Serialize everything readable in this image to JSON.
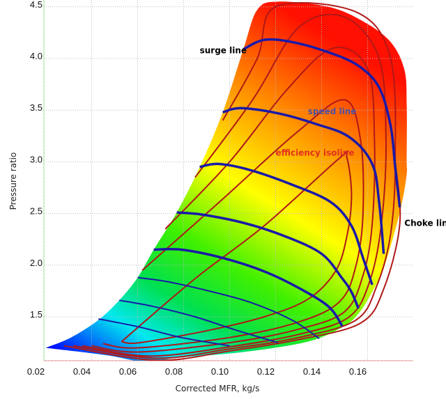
{
  "chart_data": {
    "type": "line",
    "title": "",
    "xlabel": "Corrected MFR, kg/s",
    "ylabel": "Pressure ratio",
    "xlim": [
      0.0235,
      0.18
    ],
    "ylim": [
      1.22,
      4.6
    ],
    "x_ticks": [
      0.02,
      0.04,
      0.06,
      0.08,
      0.1,
      0.12,
      0.14,
      0.16
    ],
    "x_tick_labels": [
      "0.02",
      "0.04",
      "0.06",
      "0.08",
      "0.10",
      "0.12",
      "0.14",
      "0.16"
    ],
    "y_ticks": [
      1.5,
      2.0,
      2.5,
      3.0,
      3.5,
      4.0,
      4.5
    ],
    "y_tick_labels": [
      "1.5",
      "2.0",
      "2.5",
      "3.0",
      "3.5",
      "4.0",
      "4.5"
    ],
    "grid": true,
    "colors": {
      "speed": "#1a1aa8",
      "efficiency": "#b01818",
      "speed_label": "#5050a0",
      "efficiency_label": "#e03020"
    },
    "annotations": [
      {
        "id": "surge",
        "text": "surge line",
        "at": [
          0.087,
          4.05
        ],
        "color": "#000000"
      },
      {
        "id": "speed",
        "text": "speed line",
        "at": [
          0.134,
          3.46
        ],
        "color": "#5050a0"
      },
      {
        "id": "efficiency",
        "text": "efficiency isoline",
        "at": [
          0.12,
          3.06
        ],
        "color": "#e03020"
      },
      {
        "id": "choke",
        "text": "Choke line",
        "at": [
          0.176,
          2.38
        ],
        "color": "#000000"
      }
    ],
    "map_boundary": [
      [
        0.02,
        1.2
      ],
      [
        0.031,
        1.3
      ],
      [
        0.043,
        1.47
      ],
      [
        0.052,
        1.66
      ],
      [
        0.06,
        1.88
      ],
      [
        0.067,
        2.15
      ],
      [
        0.077,
        2.51
      ],
      [
        0.087,
        2.95
      ],
      [
        0.097,
        3.48
      ],
      [
        0.106,
        4.09
      ],
      [
        0.112,
        4.47
      ],
      [
        0.121,
        4.55
      ],
      [
        0.143,
        4.5
      ],
      [
        0.158,
        4.36
      ],
      [
        0.17,
        4.16
      ],
      [
        0.176,
        3.89
      ],
      [
        0.177,
        3.56
      ],
      [
        0.177,
        3.02
      ],
      [
        0.177,
        2.88
      ],
      [
        0.175,
        2.61
      ],
      [
        0.172,
        2.34
      ],
      [
        0.167,
        1.97
      ],
      [
        0.162,
        1.74
      ],
      [
        0.156,
        1.53
      ],
      [
        0.149,
        1.4
      ],
      [
        0.134,
        1.26
      ],
      [
        0.106,
        1.16
      ],
      [
        0.076,
        1.1
      ],
      [
        0.064,
        1.06
      ],
      [
        0.046,
        1.13
      ],
      [
        0.02,
        1.2
      ]
    ],
    "speed_lines": [
      {
        "name": "speed 1",
        "points": [
          [
            0.106,
            4.09
          ],
          [
            0.115,
            4.18
          ],
          [
            0.127,
            4.16
          ],
          [
            0.143,
            4.06
          ],
          [
            0.156,
            3.93
          ],
          [
            0.165,
            3.72
          ],
          [
            0.17,
            3.35
          ],
          [
            0.172,
            2.95
          ],
          [
            0.174,
            2.56
          ]
        ]
      },
      {
        "name": "speed 2",
        "points": [
          [
            0.097,
            3.48
          ],
          [
            0.105,
            3.52
          ],
          [
            0.121,
            3.47
          ],
          [
            0.137,
            3.37
          ],
          [
            0.152,
            3.24
          ],
          [
            0.162,
            2.98
          ],
          [
            0.165,
            2.61
          ],
          [
            0.167,
            2.11
          ]
        ]
      },
      {
        "name": "speed 3",
        "points": [
          [
            0.087,
            2.95
          ],
          [
            0.095,
            2.98
          ],
          [
            0.109,
            2.92
          ],
          [
            0.127,
            2.78
          ],
          [
            0.144,
            2.61
          ],
          [
            0.153,
            2.38
          ],
          [
            0.158,
            2.07
          ],
          [
            0.162,
            1.81
          ]
        ]
      },
      {
        "name": "speed 4",
        "points": [
          [
            0.077,
            2.51
          ],
          [
            0.088,
            2.49
          ],
          [
            0.106,
            2.41
          ],
          [
            0.124,
            2.28
          ],
          [
            0.14,
            2.11
          ],
          [
            0.149,
            1.87
          ],
          [
            0.153,
            1.74
          ],
          [
            0.156,
            1.58
          ]
        ]
      },
      {
        "name": "speed 5",
        "points": [
          [
            0.067,
            2.15
          ],
          [
            0.079,
            2.15
          ],
          [
            0.097,
            2.07
          ],
          [
            0.115,
            1.94
          ],
          [
            0.13,
            1.78
          ],
          [
            0.143,
            1.6
          ],
          [
            0.149,
            1.41
          ]
        ]
      },
      {
        "name": "speed 6",
        "points": [
          [
            0.06,
            1.88
          ],
          [
            0.073,
            1.84
          ],
          [
            0.091,
            1.75
          ],
          [
            0.109,
            1.64
          ],
          [
            0.127,
            1.47
          ],
          [
            0.139,
            1.29
          ]
        ]
      },
      {
        "name": "speed 7",
        "points": [
          [
            0.052,
            1.66
          ],
          [
            0.067,
            1.6
          ],
          [
            0.085,
            1.5
          ],
          [
            0.103,
            1.37
          ],
          [
            0.121,
            1.25
          ]
        ]
      },
      {
        "name": "speed 8",
        "points": [
          [
            0.043,
            1.48
          ],
          [
            0.061,
            1.4
          ],
          [
            0.079,
            1.3
          ],
          [
            0.1,
            1.22
          ]
        ]
      }
    ],
    "efficiency_isolines": [
      {
        "name": "eff 1",
        "points": [
          [
            0.053,
            1.26
          ],
          [
            0.085,
            1.87
          ],
          [
            0.115,
            2.38
          ],
          [
            0.148,
            3.04
          ],
          [
            0.151,
            3.04
          ],
          [
            0.153,
            2.68
          ],
          [
            0.151,
            2.28
          ],
          [
            0.146,
            1.94
          ],
          [
            0.134,
            1.67
          ],
          [
            0.115,
            1.5
          ],
          [
            0.091,
            1.37
          ],
          [
            0.061,
            1.25
          ],
          [
            0.053,
            1.26
          ]
        ]
      },
      {
        "name": "eff 2",
        "points": [
          [
            0.062,
            1.95
          ],
          [
            0.095,
            2.6
          ],
          [
            0.13,
            3.3
          ],
          [
            0.15,
            3.6
          ],
          [
            0.157,
            3.2
          ],
          [
            0.158,
            2.5
          ],
          [
            0.155,
            2.0
          ],
          [
            0.148,
            1.65
          ],
          [
            0.13,
            1.45
          ],
          [
            0.1,
            1.3
          ],
          [
            0.06,
            1.2
          ],
          [
            0.045,
            1.24
          ]
        ]
      },
      {
        "name": "eff 3",
        "points": [
          [
            0.072,
            2.35
          ],
          [
            0.1,
            3.0
          ],
          [
            0.125,
            3.7
          ],
          [
            0.145,
            4.1
          ],
          [
            0.16,
            3.9
          ],
          [
            0.163,
            3.2
          ],
          [
            0.162,
            2.4
          ],
          [
            0.158,
            1.9
          ],
          [
            0.15,
            1.55
          ],
          [
            0.13,
            1.38
          ],
          [
            0.1,
            1.25
          ],
          [
            0.06,
            1.16
          ],
          [
            0.04,
            1.22
          ]
        ]
      },
      {
        "name": "eff 4",
        "points": [
          [
            0.085,
            2.85
          ],
          [
            0.11,
            3.6
          ],
          [
            0.13,
            4.3
          ],
          [
            0.15,
            4.4
          ],
          [
            0.165,
            4.0
          ],
          [
            0.168,
            3.2
          ],
          [
            0.166,
            2.4
          ],
          [
            0.161,
            1.85
          ],
          [
            0.152,
            1.5
          ],
          [
            0.13,
            1.33
          ],
          [
            0.1,
            1.21
          ],
          [
            0.065,
            1.12
          ],
          [
            0.036,
            1.22
          ]
        ]
      },
      {
        "name": "eff 5",
        "points": [
          [
            0.097,
            3.4
          ],
          [
            0.112,
            4.0
          ],
          [
            0.12,
            4.5
          ],
          [
            0.155,
            4.45
          ],
          [
            0.17,
            4.0
          ],
          [
            0.172,
            3.0
          ],
          [
            0.17,
            2.3
          ],
          [
            0.164,
            1.8
          ],
          [
            0.155,
            1.47
          ],
          [
            0.13,
            1.3
          ],
          [
            0.1,
            1.19
          ],
          [
            0.068,
            1.1
          ],
          [
            0.032,
            1.22
          ]
        ]
      },
      {
        "name": "eff 6",
        "points": [
          [
            0.172,
            3.0
          ],
          [
            0.174,
            2.4
          ],
          [
            0.167,
            1.77
          ],
          [
            0.157,
            1.44
          ],
          [
            0.13,
            1.28
          ],
          [
            0.1,
            1.17
          ],
          [
            0.068,
            1.08
          ],
          [
            0.028,
            1.22
          ]
        ]
      }
    ]
  }
}
